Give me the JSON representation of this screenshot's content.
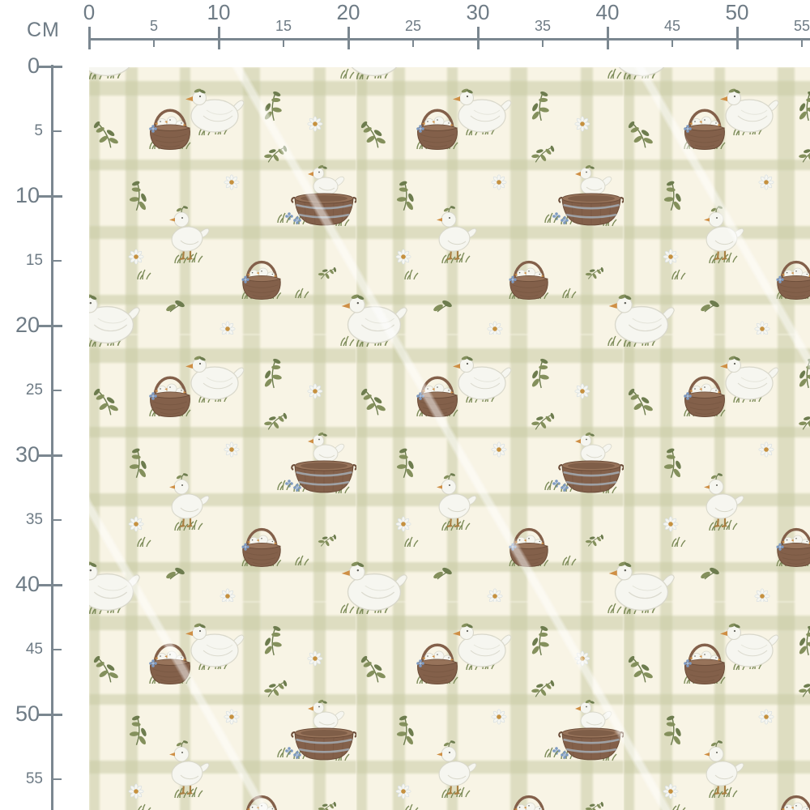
{
  "ruler": {
    "unit_label": "CM",
    "text_color": "#6e7b85",
    "line_color": "#7b8790",
    "top": {
      "major_values": [
        0,
        10,
        20,
        30,
        40,
        50
      ],
      "minor_values": [
        5,
        15,
        25,
        35,
        45,
        55
      ]
    },
    "left": {
      "major_values": [
        0,
        10,
        20,
        30,
        40,
        50
      ],
      "minor_values": [
        5,
        15,
        25,
        35,
        45,
        55
      ]
    }
  },
  "fabric": {
    "background_color": "#f8f4e5",
    "plaid_band_color": "#c9caa4",
    "motifs": [
      {
        "name": "duckling-basket-motif"
      },
      {
        "name": "duck-in-washtub-motif"
      },
      {
        "name": "sitting-goose-motif"
      },
      {
        "name": "standing-duckling-motif"
      },
      {
        "name": "daisy-flower-motif"
      },
      {
        "name": "leaf-sprig-motif"
      },
      {
        "name": "grass-tuft-motif"
      },
      {
        "name": "blue-flower-motif"
      }
    ],
    "palette": {
      "basket_brown": "#83604a",
      "basket_brown_dark": "#6b4c38",
      "basket_rim": "#97735a",
      "duck_white": "#f6f6f0",
      "duck_shade": "#d9d8cb",
      "beak_orange": "#cf8f45",
      "leaf_green": "#84905c",
      "leaf_green_dark": "#6d7c4e",
      "grass_green": "#7c8b58",
      "daisy_center": "#c6913f",
      "flower_blue": "#7d9ac2",
      "metal_band": "#a3adb5",
      "feet_brown": "#a87f42"
    }
  }
}
